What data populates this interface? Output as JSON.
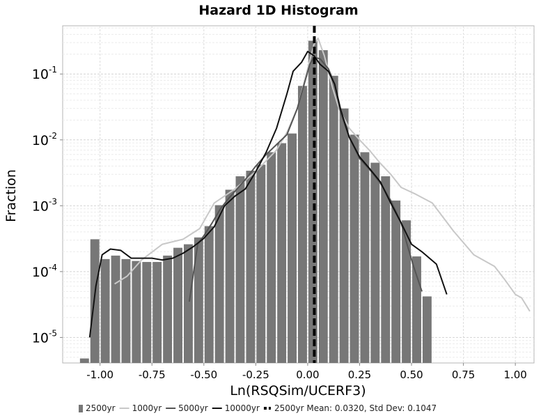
{
  "chart_data": {
    "type": "bar",
    "title": "Hazard 1D Histogram",
    "xlabel": "Ln(RSQSim/UCERF3)",
    "ylabel": "Fraction",
    "xlim": [
      -1.18,
      1.09
    ],
    "ylim": [
      4.1e-06,
      0.54
    ],
    "yscale": "log",
    "grid": true,
    "legend_position": "bottom",
    "x_ticks": [
      -1.0,
      -0.75,
      -0.5,
      -0.25,
      0.0,
      0.25,
      0.5,
      0.75,
      1.0
    ],
    "x_tick_labels": [
      "-1.00",
      "-0.75",
      "-0.50",
      "-0.25",
      "0.00",
      "0.25",
      "0.50",
      "0.75",
      "1.00"
    ],
    "y_ticks": [
      {
        "value": 1e-05,
        "base": "10",
        "exp": "-5"
      },
      {
        "value": 0.0001,
        "base": "10",
        "exp": "-4"
      },
      {
        "value": 0.001,
        "base": "10",
        "exp": "-3"
      },
      {
        "value": 0.01,
        "base": "10",
        "exp": "-2"
      },
      {
        "value": 0.1,
        "base": "10",
        "exp": "-1"
      }
    ],
    "histogram": {
      "name": "2500yr",
      "color": "#777777",
      "bin_width": 0.05,
      "bin_centers": [
        -1.075,
        -1.025,
        -0.975,
        -0.925,
        -0.875,
        -0.825,
        -0.775,
        -0.725,
        -0.675,
        -0.625,
        -0.575,
        -0.525,
        -0.475,
        -0.425,
        -0.375,
        -0.325,
        -0.275,
        -0.225,
        -0.175,
        -0.125,
        -0.075,
        -0.025,
        0.025,
        0.075,
        0.125,
        0.175,
        0.225,
        0.275,
        0.325,
        0.375,
        0.425,
        0.475,
        0.525,
        0.575
      ],
      "values": [
        4.8e-06,
        0.00031,
        0.000155,
        0.000175,
        0.000155,
        0.000145,
        0.00014,
        0.00014,
        0.000175,
        0.00023,
        0.00026,
        0.00033,
        0.00049,
        0.00102,
        0.00175,
        0.0028,
        0.0034,
        0.0042,
        0.0065,
        0.0089,
        0.0125,
        0.066,
        0.32,
        0.23,
        0.094,
        0.03,
        0.012,
        0.0065,
        0.0045,
        0.0028,
        0.0012,
        0.0006,
        0.00017,
        4.2e-05
      ]
    },
    "series": [
      {
        "name": "1000yr",
        "color": "#c8c8c8",
        "x": [
          -0.93,
          -0.87,
          -0.8,
          -0.7,
          -0.6,
          -0.52,
          -0.45,
          -0.35,
          -0.25,
          -0.15,
          -0.1,
          -0.05,
          0.0,
          0.03,
          0.05,
          0.08,
          0.12,
          0.15,
          0.2,
          0.25,
          0.3,
          0.35,
          0.4,
          0.45,
          0.52,
          0.6,
          0.7,
          0.8,
          0.9,
          0.95,
          1.0,
          1.03,
          1.07
        ],
        "values": [
          6.5e-05,
          8.5e-05,
          0.00015,
          0.00026,
          0.00031,
          0.00045,
          0.0011,
          0.0018,
          0.0033,
          0.007,
          0.013,
          0.03,
          0.12,
          0.28,
          0.35,
          0.19,
          0.062,
          0.03,
          0.015,
          0.01,
          0.0068,
          0.0044,
          0.003,
          0.0019,
          0.0015,
          0.0011,
          0.00042,
          0.00018,
          0.00012,
          7.5e-05,
          4.5e-05,
          4e-05,
          2.5e-05
        ]
      },
      {
        "name": "5000yr",
        "color": "#555555",
        "x": [
          -0.57,
          -0.53,
          -0.5,
          -0.46,
          -0.42,
          -0.38,
          -0.34,
          -0.3,
          -0.25,
          -0.2,
          -0.15,
          -0.1,
          -0.05,
          -0.02,
          0.01,
          0.03,
          0.06,
          0.1,
          0.13,
          0.16,
          0.2,
          0.25,
          0.3,
          0.35,
          0.4,
          0.45,
          0.48,
          0.51,
          0.55
        ],
        "values": [
          3.5e-05,
          0.00026,
          0.00035,
          0.00055,
          0.0009,
          0.0013,
          0.0018,
          0.0025,
          0.004,
          0.006,
          0.0085,
          0.012,
          0.03,
          0.065,
          0.14,
          0.18,
          0.17,
          0.12,
          0.07,
          0.025,
          0.011,
          0.0052,
          0.0035,
          0.0022,
          0.0012,
          0.00055,
          0.00025,
          0.00012,
          5e-05
        ]
      },
      {
        "name": "10000yr",
        "color": "#111111",
        "x": [
          -1.05,
          -1.02,
          -0.99,
          -0.95,
          -0.9,
          -0.85,
          -0.8,
          -0.75,
          -0.7,
          -0.65,
          -0.6,
          -0.55,
          -0.5,
          -0.45,
          -0.4,
          -0.35,
          -0.3,
          -0.25,
          -0.2,
          -0.15,
          -0.1,
          -0.07,
          -0.03,
          0.0,
          0.03,
          0.06,
          0.1,
          0.13,
          0.16,
          0.2,
          0.25,
          0.3,
          0.35,
          0.4,
          0.45,
          0.5,
          0.55,
          0.62,
          0.67
        ],
        "values": [
          1e-05,
          6e-05,
          0.00018,
          0.00022,
          0.00021,
          0.00016,
          0.00016,
          0.00016,
          0.00015,
          0.00016,
          0.00019,
          0.00024,
          0.00032,
          0.00048,
          0.001,
          0.0014,
          0.0018,
          0.0033,
          0.0065,
          0.015,
          0.05,
          0.11,
          0.15,
          0.22,
          0.19,
          0.14,
          0.11,
          0.07,
          0.028,
          0.011,
          0.0055,
          0.0036,
          0.0023,
          0.0011,
          0.00055,
          0.00026,
          0.0002,
          0.00013,
          4.5e-05
        ]
      }
    ],
    "mean_line": {
      "name": "2500yr Mean: 0.0320, Std Dev: 0.1047",
      "x": 0.032,
      "color": "#000000"
    },
    "legend": [
      {
        "label": "2500yr",
        "kind": "box",
        "color": "#777777"
      },
      {
        "label": "1000yr",
        "kind": "line",
        "color": "#c8c8c8"
      },
      {
        "label": "5000yr",
        "kind": "line",
        "color": "#555555"
      },
      {
        "label": "10000yr",
        "kind": "line",
        "color": "#111111"
      },
      {
        "label": "2500yr Mean: 0.0320, Std Dev: 0.1047",
        "kind": "dash",
        "color": "#000000"
      }
    ]
  }
}
